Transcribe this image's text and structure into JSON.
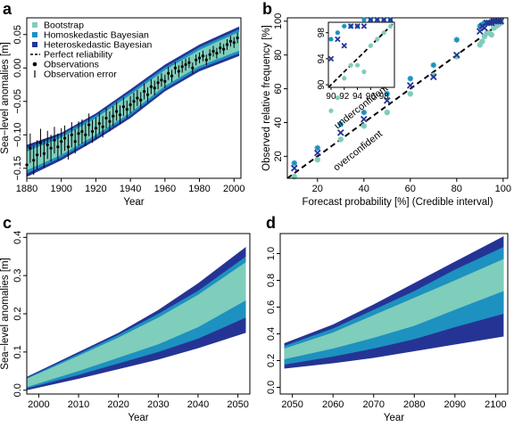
{
  "colors": {
    "bootstrap": "#7fcdbb",
    "homoskedastic": "#1d91c0",
    "heteroskedastic": "#253494",
    "observations": "#000000",
    "background": "#ffffff"
  },
  "chart_data": [
    {
      "panel": "a",
      "type": "line",
      "xlabel": "Year",
      "ylabel": "Sea−level anomalies [m]",
      "xlim": [
        1880,
        2004
      ],
      "ylim": [
        -0.165,
        0.075
      ],
      "xticks": [
        1880,
        1900,
        1920,
        1940,
        1960,
        1980,
        2000
      ],
      "yticks": [
        -0.15,
        -0.1,
        -0.05,
        0,
        0.05
      ],
      "ytick_labels": [
        "−0.15",
        "−0.10",
        "−0.05",
        "0.00",
        "0.05"
      ],
      "legend_position": "top-left",
      "legend": [
        "Bootstrap",
        "Homoskedastic Bayesian",
        "Heteroskedastic Bayesian",
        "Perfect reliability",
        "Observations",
        "Observation error"
      ],
      "series": [
        {
          "name": "Heteroskedastic Bayesian",
          "x": [
            1880,
            1900,
            1920,
            1940,
            1960,
            1980,
            2003
          ],
          "lower": [
            -0.163,
            -0.138,
            -0.108,
            -0.075,
            -0.035,
            -0.005,
            0.018
          ],
          "upper": [
            -0.115,
            -0.097,
            -0.068,
            -0.032,
            0.005,
            0.035,
            0.062
          ]
        },
        {
          "name": "Homoskedastic Bayesian",
          "x": [
            1880,
            1900,
            1920,
            1940,
            1960,
            1980,
            2003
          ],
          "lower": [
            -0.158,
            -0.134,
            -0.104,
            -0.071,
            -0.031,
            -0.001,
            0.022
          ],
          "upper": [
            -0.12,
            -0.1,
            -0.071,
            -0.036,
            0.001,
            0.031,
            0.058
          ]
        },
        {
          "name": "Bootstrap",
          "x": [
            1880,
            1900,
            1920,
            1940,
            1960,
            1980,
            2003
          ],
          "lower": [
            -0.153,
            -0.13,
            -0.1,
            -0.067,
            -0.027,
            0.003,
            0.026
          ],
          "upper": [
            -0.125,
            -0.104,
            -0.075,
            -0.04,
            -0.003,
            0.027,
            0.054
          ]
        }
      ],
      "observations": {
        "x": [
          1880,
          1882,
          1884,
          1886,
          1888,
          1890,
          1892,
          1894,
          1896,
          1898,
          1900,
          1902,
          1904,
          1906,
          1908,
          1910,
          1912,
          1914,
          1916,
          1918,
          1920,
          1922,
          1924,
          1926,
          1928,
          1930,
          1932,
          1934,
          1936,
          1938,
          1940,
          1942,
          1944,
          1946,
          1948,
          1950,
          1952,
          1954,
          1956,
          1958,
          1960,
          1962,
          1964,
          1966,
          1968,
          1970,
          1972,
          1974,
          1976,
          1978,
          1980,
          1982,
          1984,
          1986,
          1988,
          1990,
          1992,
          1994,
          1996,
          1998,
          2000,
          2002
        ],
        "y": [
          -0.145,
          -0.12,
          -0.138,
          -0.13,
          -0.112,
          -0.128,
          -0.115,
          -0.12,
          -0.108,
          -0.118,
          -0.11,
          -0.105,
          -0.118,
          -0.1,
          -0.11,
          -0.098,
          -0.095,
          -0.1,
          -0.085,
          -0.095,
          -0.09,
          -0.083,
          -0.088,
          -0.075,
          -0.08,
          -0.072,
          -0.065,
          -0.07,
          -0.058,
          -0.062,
          -0.055,
          -0.05,
          -0.045,
          -0.048,
          -0.035,
          -0.04,
          -0.028,
          -0.03,
          -0.022,
          -0.018,
          -0.02,
          -0.008,
          -0.012,
          0.0,
          -0.005,
          0.002,
          0.005,
          0.008,
          0.0,
          0.012,
          0.015,
          0.018,
          0.012,
          0.02,
          0.025,
          0.022,
          0.03,
          0.028,
          0.035,
          0.04,
          0.038,
          0.045
        ],
        "error": [
          0.022,
          0.022,
          0.022,
          0.022,
          0.021,
          0.021,
          0.021,
          0.02,
          0.02,
          0.02,
          0.02,
          0.019,
          0.019,
          0.019,
          0.018,
          0.018,
          0.018,
          0.017,
          0.017,
          0.017,
          0.016,
          0.016,
          0.016,
          0.015,
          0.015,
          0.015,
          0.014,
          0.014,
          0.014,
          0.013,
          0.013,
          0.013,
          0.012,
          0.012,
          0.012,
          0.011,
          0.011,
          0.011,
          0.01,
          0.01,
          0.01,
          0.01,
          0.009,
          0.009,
          0.009,
          0.009,
          0.009,
          0.008,
          0.008,
          0.008,
          0.008,
          0.008,
          0.008,
          0.008,
          0.008,
          0.008,
          0.008,
          0.008,
          0.008,
          0.008,
          0.008,
          0.008
        ]
      }
    },
    {
      "panel": "b",
      "type": "scatter",
      "xlabel": "Forecast probability [%] (Credible interval)",
      "ylabel": "Observed relative frequency [%]",
      "xlim": [
        7,
        102
      ],
      "ylim": [
        7,
        102
      ],
      "xticks": [
        20,
        40,
        60,
        80,
        100
      ],
      "yticks": [
        20,
        40,
        60,
        80,
        100
      ],
      "annotations": [
        "underconfident",
        "overconfident"
      ],
      "reference_line": {
        "name": "Perfect reliability",
        "x": [
          0,
          100
        ],
        "y": [
          0,
          100
        ]
      },
      "series": [
        {
          "name": "Bootstrap",
          "x": [
            10,
            20,
            30,
            40,
            50,
            60,
            70,
            80,
            90,
            91,
            92,
            93,
            94,
            95,
            96,
            97,
            98,
            99
          ],
          "y": [
            8,
            18,
            30,
            38,
            46,
            57,
            68,
            79,
            86,
            88,
            91,
            93,
            93,
            92,
            96,
            97,
            98,
            99
          ]
        },
        {
          "name": "Homoskedastic Bayesian",
          "x": [
            10,
            20,
            30,
            40,
            50,
            60,
            70,
            80,
            90,
            91,
            92,
            93,
            94,
            95,
            96,
            97,
            98,
            99
          ],
          "y": [
            16,
            25,
            39,
            46,
            57,
            66,
            74,
            89,
            97,
            98,
            99,
            99,
            99,
            100,
            100,
            100,
            100,
            100
          ]
        },
        {
          "name": "Heteroskedastic Bayesian",
          "x": [
            10,
            20,
            30,
            40,
            50,
            60,
            70,
            80,
            90,
            91,
            92,
            93,
            94,
            95,
            96,
            97,
            98,
            99
          ],
          "y": [
            13,
            22,
            34,
            42,
            53,
            62,
            67,
            80,
            94,
            97,
            96,
            99,
            99,
            99,
            100,
            100,
            100,
            100
          ]
        }
      ],
      "inset": {
        "xlim": [
          89.6,
          99.6
        ],
        "ylim": [
          89.6,
          99.6
        ],
        "xticks": [
          90,
          92,
          94,
          96,
          98
        ],
        "yticks": [
          90,
          94,
          98
        ]
      }
    },
    {
      "panel": "c",
      "type": "area",
      "xlabel": "Year",
      "ylabel": "Sea−level anomalies [m]",
      "xlim": [
        1997,
        2053
      ],
      "ylim": [
        -0.01,
        0.41
      ],
      "xticks": [
        2000,
        2010,
        2020,
        2030,
        2040,
        2050
      ],
      "yticks": [
        0.0,
        0.1,
        0.2,
        0.3,
        0.4
      ],
      "series": [
        {
          "name": "Heteroskedastic Bayesian",
          "x": [
            1997,
            2010,
            2020,
            2030,
            2040,
            2052
          ],
          "lower": [
            0.0,
            0.03,
            0.055,
            0.08,
            0.11,
            0.15
          ],
          "upper": [
            0.035,
            0.1,
            0.15,
            0.21,
            0.28,
            0.375
          ]
        },
        {
          "name": "Homoskedastic Bayesian",
          "x": [
            1997,
            2010,
            2020,
            2030,
            2040,
            2052
          ],
          "lower": [
            0.005,
            0.04,
            0.07,
            0.1,
            0.135,
            0.19
          ],
          "upper": [
            0.032,
            0.095,
            0.145,
            0.2,
            0.26,
            0.35
          ]
        },
        {
          "name": "Bootstrap",
          "x": [
            1997,
            2010,
            2020,
            2030,
            2040,
            2052
          ],
          "lower": [
            0.008,
            0.05,
            0.085,
            0.12,
            0.165,
            0.235
          ],
          "upper": [
            0.03,
            0.09,
            0.138,
            0.19,
            0.25,
            0.335
          ]
        }
      ]
    },
    {
      "panel": "d",
      "type": "area",
      "xlabel": "Year",
      "ylabel": "",
      "xlim": [
        2047,
        2103
      ],
      "ylim": [
        -0.05,
        1.15
      ],
      "xticks": [
        2050,
        2060,
        2070,
        2080,
        2090,
        2100
      ],
      "yticks": [
        0.0,
        0.2,
        0.4,
        0.6,
        0.8,
        1.0
      ],
      "series": [
        {
          "name": "Heteroskedastic Bayesian",
          "x": [
            2048,
            2060,
            2070,
            2080,
            2090,
            2102
          ],
          "lower": [
            0.14,
            0.18,
            0.22,
            0.27,
            0.32,
            0.38
          ],
          "upper": [
            0.33,
            0.47,
            0.62,
            0.78,
            0.94,
            1.13
          ]
        },
        {
          "name": "Homoskedastic Bayesian",
          "x": [
            2048,
            2060,
            2070,
            2080,
            2090,
            2102
          ],
          "lower": [
            0.17,
            0.23,
            0.29,
            0.36,
            0.45,
            0.55
          ],
          "upper": [
            0.31,
            0.44,
            0.58,
            0.72,
            0.88,
            1.05
          ]
        },
        {
          "name": "Bootstrap",
          "x": [
            2048,
            2060,
            2070,
            2080,
            2090,
            2102
          ],
          "lower": [
            0.21,
            0.29,
            0.37,
            0.46,
            0.58,
            0.72
          ],
          "upper": [
            0.29,
            0.41,
            0.54,
            0.67,
            0.8,
            0.96
          ]
        }
      ]
    }
  ]
}
